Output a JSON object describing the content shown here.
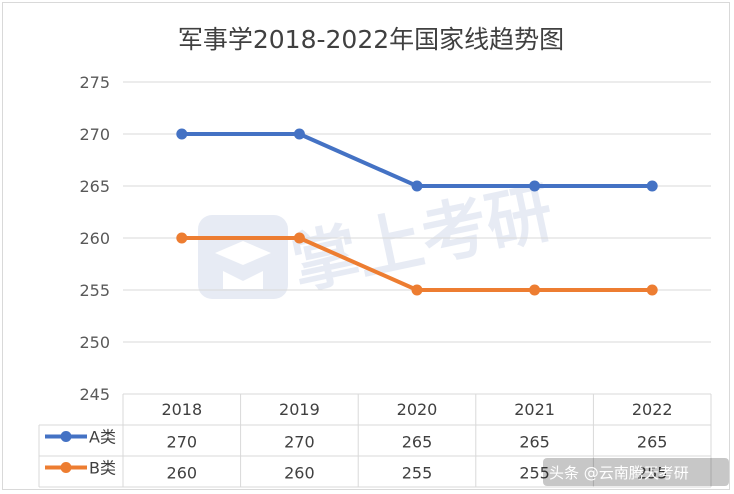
{
  "chart_data": {
    "type": "line",
    "title": "军事学2018-2022年国家线趋势图",
    "categories": [
      "2018",
      "2019",
      "2020",
      "2021",
      "2022"
    ],
    "series": [
      {
        "name": "A类",
        "values": [
          270,
          270,
          265,
          265,
          265
        ],
        "color": "#4472c4"
      },
      {
        "name": "B类",
        "values": [
          260,
          260,
          255,
          255,
          255
        ],
        "color": "#ed7d31"
      }
    ],
    "y_ticks": [
      "245",
      "250",
      "255",
      "260",
      "265",
      "270",
      "275"
    ],
    "ylim": [
      245,
      275
    ],
    "grid": true,
    "data_table": true
  },
  "watermark": {
    "logo_text": "掌上考研",
    "credit": "头条 @云南腾天考研"
  }
}
